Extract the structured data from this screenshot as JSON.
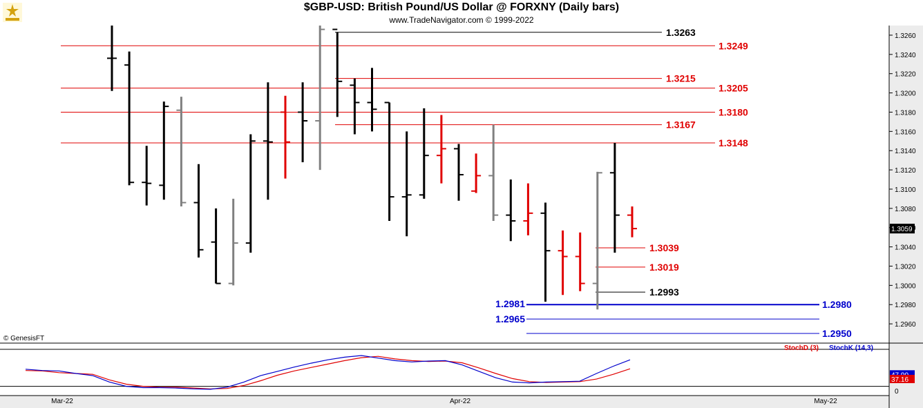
{
  "header": {
    "title": "$GBP-USD:  British Pound/US Dollar @ FORXNY  (Daily bars)",
    "subtitle": "www.TradeNavigator.com © 1999-2022"
  },
  "credit": "© GenesisFT",
  "colors": {
    "up_bar": "#000000",
    "down_bar": "#e00000",
    "gray_bar": "#808080",
    "resistance": "#e00000",
    "support": "#0000cc",
    "stoch_d": "#e00000",
    "stoch_k": "#0000cc",
    "axis_bg": "#ececec"
  },
  "chart_data": {
    "type": "ohlc",
    "instrument": "$GBP-USD",
    "ylim": [
      1.294,
      1.327
    ],
    "y_ticks": [
      "1.3260",
      "1.3240",
      "1.3220",
      "1.3200",
      "1.3180",
      "1.3160",
      "1.3140",
      "1.3120",
      "1.3100",
      "1.3080",
      "1.3060",
      "1.3040",
      "1.3020",
      "1.3000",
      "1.2980",
      "1.2960"
    ],
    "last_price": "1.3059",
    "x_labels": [
      "Mar-22",
      "Apr-22",
      "May-22"
    ],
    "bars": [
      {
        "o": 1.3236,
        "h": 1.327,
        "l": 1.3202,
        "c": 1.3236,
        "color": "up"
      },
      {
        "o": 1.3229,
        "h": 1.3243,
        "l": 1.3104,
        "c": 1.3107,
        "color": "up"
      },
      {
        "o": 1.3107,
        "h": 1.3145,
        "l": 1.3083,
        "c": 1.3106,
        "color": "up"
      },
      {
        "o": 1.3104,
        "h": 1.3191,
        "l": 1.3089,
        "c": 1.3186,
        "color": "up"
      },
      {
        "o": 1.3182,
        "h": 1.3196,
        "l": 1.3082,
        "c": 1.3086,
        "color": "gray"
      },
      {
        "o": 1.3086,
        "h": 1.3126,
        "l": 1.3029,
        "c": 1.3037,
        "color": "up"
      },
      {
        "o": 1.3045,
        "h": 1.308,
        "l": 1.3002,
        "c": 1.3002,
        "color": "up"
      },
      {
        "o": 1.3002,
        "h": 1.309,
        "l": 1.3,
        "c": 1.3044,
        "color": "gray"
      },
      {
        "o": 1.3044,
        "h": 1.3157,
        "l": 1.3034,
        "c": 1.315,
        "color": "up"
      },
      {
        "o": 1.315,
        "h": 1.3211,
        "l": 1.3089,
        "c": 1.3149,
        "color": "up"
      },
      {
        "o": 1.318,
        "h": 1.3197,
        "l": 1.3111,
        "c": 1.3149,
        "color": "down"
      },
      {
        "o": 1.318,
        "h": 1.3211,
        "l": 1.3128,
        "c": 1.3171,
        "color": "up"
      },
      {
        "o": 1.3171,
        "h": 1.327,
        "l": 1.312,
        "c": 1.3266,
        "color": "gray"
      },
      {
        "o": 1.3266,
        "h": 1.3263,
        "l": 1.3175,
        "c": 1.3212,
        "color": "up"
      },
      {
        "o": 1.3208,
        "h": 1.3215,
        "l": 1.3157,
        "c": 1.319,
        "color": "up"
      },
      {
        "o": 1.319,
        "h": 1.3226,
        "l": 1.316,
        "c": 1.3183,
        "color": "up"
      },
      {
        "o": 1.319,
        "h": 1.319,
        "l": 1.3067,
        "c": 1.3092,
        "color": "up"
      },
      {
        "o": 1.3092,
        "h": 1.316,
        "l": 1.3051,
        "c": 1.3094,
        "color": "up"
      },
      {
        "o": 1.3094,
        "h": 1.3184,
        "l": 1.309,
        "c": 1.3135,
        "color": "up"
      },
      {
        "o": 1.3135,
        "h": 1.3177,
        "l": 1.3106,
        "c": 1.3142,
        "color": "down"
      },
      {
        "o": 1.3142,
        "h": 1.3147,
        "l": 1.3088,
        "c": 1.3115,
        "color": "up"
      },
      {
        "o": 1.3098,
        "h": 1.3137,
        "l": 1.3096,
        "c": 1.3114,
        "color": "down"
      },
      {
        "o": 1.3114,
        "h": 1.3167,
        "l": 1.3067,
        "c": 1.3073,
        "color": "gray"
      },
      {
        "o": 1.3073,
        "h": 1.311,
        "l": 1.3046,
        "c": 1.3067,
        "color": "up"
      },
      {
        "o": 1.3067,
        "h": 1.3106,
        "l": 1.3052,
        "c": 1.3075,
        "color": "down"
      },
      {
        "o": 1.3075,
        "h": 1.3086,
        "l": 1.2983,
        "c": 1.3036,
        "color": "up"
      },
      {
        "o": 1.3036,
        "h": 1.3057,
        "l": 1.299,
        "c": 1.303,
        "color": "down"
      },
      {
        "o": 1.303,
        "h": 1.3055,
        "l": 1.2994,
        "c": 1.3002,
        "color": "down"
      },
      {
        "o": 1.3002,
        "h": 1.3118,
        "l": 1.2975,
        "c": 1.3117,
        "color": "gray"
      },
      {
        "o": 1.3117,
        "h": 1.3148,
        "l": 1.3034,
        "c": 1.3073,
        "color": "up"
      },
      {
        "o": 1.3073,
        "h": 1.3082,
        "l": 1.305,
        "c": 1.3059,
        "color": "down"
      }
    ],
    "levels": [
      {
        "label": "1.3263",
        "price": 1.3263,
        "type": "black"
      },
      {
        "label": "1.3249",
        "price": 1.3249,
        "type": "resistance"
      },
      {
        "label": "1.3215",
        "price": 1.3215,
        "type": "resistance"
      },
      {
        "label": "1.3205",
        "price": 1.3205,
        "type": "resistance"
      },
      {
        "label": "1.3180",
        "price": 1.318,
        "type": "resistance"
      },
      {
        "label": "1.3167",
        "price": 1.3167,
        "type": "resistance"
      },
      {
        "label": "1.3148",
        "price": 1.3148,
        "type": "resistance"
      },
      {
        "label": "1.3039",
        "price": 1.3039,
        "type": "resistance"
      },
      {
        "label": "1.3019",
        "price": 1.3019,
        "type": "resistance"
      },
      {
        "label": "1.2993",
        "price": 1.2993,
        "type": "black"
      },
      {
        "label": "1.2981",
        "price": 1.2981,
        "type": "support"
      },
      {
        "label": "1.2980",
        "price": 1.298,
        "type": "support"
      },
      {
        "label": "1.2965",
        "price": 1.2965,
        "type": "support"
      },
      {
        "label": "1.2950",
        "price": 1.295,
        "type": "support"
      }
    ],
    "stochastic": {
      "legend_d": "StochD (3)",
      "legend_k": "StochK (14,3)",
      "value_k": "47.90",
      "value_d": "37.16",
      "y_tick": "0",
      "k": [
        60,
        57,
        56,
        50,
        45,
        30,
        20,
        17,
        17,
        16,
        14,
        13,
        18,
        30,
        45,
        55,
        65,
        74,
        82,
        88,
        92,
        86,
        80,
        77,
        79,
        80,
        70,
        55,
        40,
        30,
        28,
        30,
        31,
        32,
        50,
        67,
        82
      ],
      "d": [
        57,
        56,
        52,
        50,
        48,
        35,
        25,
        20,
        18,
        18,
        16,
        14,
        15,
        22,
        33,
        46,
        56,
        64,
        72,
        80,
        87,
        90,
        84,
        80,
        78,
        79,
        75,
        63,
        50,
        38,
        31,
        29,
        30,
        31,
        37,
        48,
        61
      ]
    }
  }
}
